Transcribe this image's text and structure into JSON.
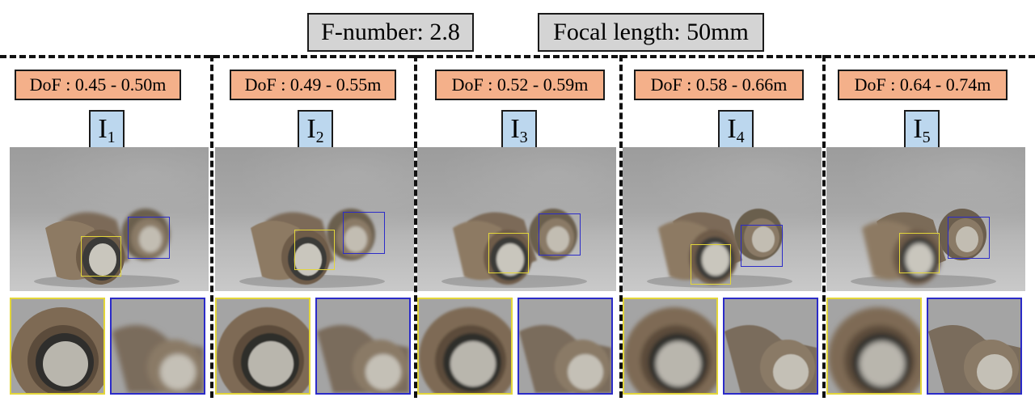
{
  "header": {
    "f_number": "F-number: 2.8",
    "focal_length": "Focal length: 50mm"
  },
  "colors": {
    "header_box": "#d4d4d4",
    "dof_box": "#f4b08a",
    "image_label_box": "#bcd7ee",
    "roi_near": "#e3d63a",
    "roi_far": "#2b2bc8",
    "dashed_line": "#111111"
  },
  "panels": [
    {
      "dof": "DoF : 0.45 - 0.50m",
      "label": "I",
      "sub": "1",
      "sharp_near": 1.0,
      "sharp_far": 0.2
    },
    {
      "dof": "DoF : 0.49 - 0.55m",
      "label": "I",
      "sub": "2",
      "sharp_near": 0.8,
      "sharp_far": 0.4
    },
    {
      "dof": "DoF : 0.52 - 0.59m",
      "label": "I",
      "sub": "3",
      "sharp_near": 0.6,
      "sharp_far": 0.6
    },
    {
      "dof": "DoF : 0.58 - 0.66m",
      "label": "I",
      "sub": "4",
      "sharp_near": 0.35,
      "sharp_far": 0.85
    },
    {
      "dof": "DoF : 0.64 - 0.74m",
      "label": "I",
      "sub": "5",
      "sharp_near": 0.15,
      "sharp_far": 1.0
    }
  ]
}
